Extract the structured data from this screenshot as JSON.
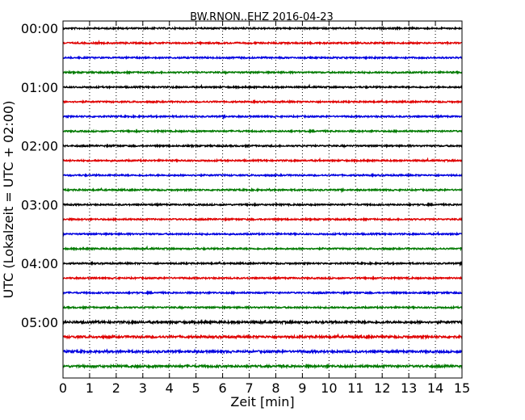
{
  "chart_data": {
    "type": "line",
    "title": "BW.RNON..EHZ 2016-04-23",
    "xlabel": "Zeit  [min]",
    "ylabel": "UTC (Lokalzeit = UTC + 02:00)",
    "xlim": [
      0,
      15
    ],
    "ylim_rows": [
      -0.5,
      23.8
    ],
    "x_ticks": [
      "0",
      "1",
      "2",
      "3",
      "4",
      "5",
      "6",
      "7",
      "8",
      "9",
      "10",
      "11",
      "12",
      "13",
      "14",
      "15"
    ],
    "y_ticks": [
      {
        "label": "00:00",
        "row": 0
      },
      {
        "label": "01:00",
        "row": 4
      },
      {
        "label": "02:00",
        "row": 8
      },
      {
        "label": "03:00",
        "row": 12
      },
      {
        "label": "04:00",
        "row": 16
      },
      {
        "label": "05:00",
        "row": 20
      }
    ],
    "grid_x": true,
    "trace_minutes": 15,
    "trace_count": 24,
    "series_colors": [
      "#000000",
      "#e00000",
      "#0000e0",
      "#007a00"
    ]
  }
}
